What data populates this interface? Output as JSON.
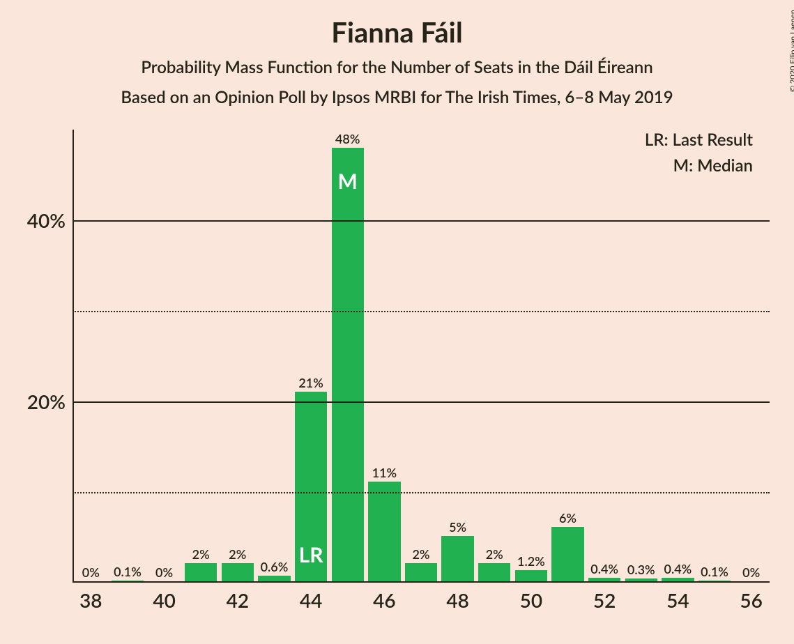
{
  "title": "Fianna Fáil",
  "subtitle": "Probability Mass Function for the Number of Seats in the Dáil Éireann",
  "subtitle2": "Based on an Opinion Poll by Ipsos MRBI for The Irish Times, 6–8 May 2019",
  "copyright": "© 2020 Filip van Laenen",
  "legend": {
    "lr": "LR: Last Result",
    "m": "M: Median"
  },
  "chart": {
    "type": "bar",
    "background_color": "#fae6da",
    "bar_color": "#22b151",
    "text_color": "#262419",
    "inside_text_color": "#ffffff",
    "title_fontsize": 40,
    "subtitle_fontsize": 24,
    "axis_label_fontsize": 28,
    "bar_label_fontsize": 18,
    "inside_label_fontsize": 30,
    "legend_fontsize": 24,
    "xlim": [
      38,
      56
    ],
    "ylim": [
      0,
      50
    ],
    "y_ticks": [
      {
        "value": 0,
        "style": "solid",
        "label": ""
      },
      {
        "value": 10,
        "style": "dotted",
        "label": ""
      },
      {
        "value": 20,
        "style": "solid",
        "label": "20%"
      },
      {
        "value": 30,
        "style": "dotted",
        "label": ""
      },
      {
        "value": 40,
        "style": "solid",
        "label": "40%"
      }
    ],
    "x_ticks": [
      38,
      40,
      42,
      44,
      46,
      48,
      50,
      52,
      54,
      56
    ],
    "bar_width_ratio": 0.88,
    "bars": [
      {
        "x": 38,
        "value": 0,
        "label": "0%"
      },
      {
        "x": 39,
        "value": 0.1,
        "label": "0.1%"
      },
      {
        "x": 40,
        "value": 0,
        "label": "0%"
      },
      {
        "x": 41,
        "value": 2,
        "label": "2%"
      },
      {
        "x": 42,
        "value": 2,
        "label": "2%"
      },
      {
        "x": 43,
        "value": 0.6,
        "label": "0.6%"
      },
      {
        "x": 44,
        "value": 21,
        "label": "21%",
        "inside": "LR",
        "inside_pos": "bottom"
      },
      {
        "x": 45,
        "value": 48,
        "label": "48%",
        "inside": "M",
        "inside_pos": "top"
      },
      {
        "x": 46,
        "value": 11,
        "label": "11%"
      },
      {
        "x": 47,
        "value": 2,
        "label": "2%"
      },
      {
        "x": 48,
        "value": 5,
        "label": "5%"
      },
      {
        "x": 49,
        "value": 2,
        "label": "2%"
      },
      {
        "x": 50,
        "value": 1.2,
        "label": "1.2%"
      },
      {
        "x": 51,
        "value": 6,
        "label": "6%"
      },
      {
        "x": 52,
        "value": 0.4,
        "label": "0.4%"
      },
      {
        "x": 53,
        "value": 0.3,
        "label": "0.3%"
      },
      {
        "x": 54,
        "value": 0.4,
        "label": "0.4%"
      },
      {
        "x": 55,
        "value": 0.1,
        "label": "0.1%"
      },
      {
        "x": 56,
        "value": 0,
        "label": "0%"
      }
    ]
  }
}
